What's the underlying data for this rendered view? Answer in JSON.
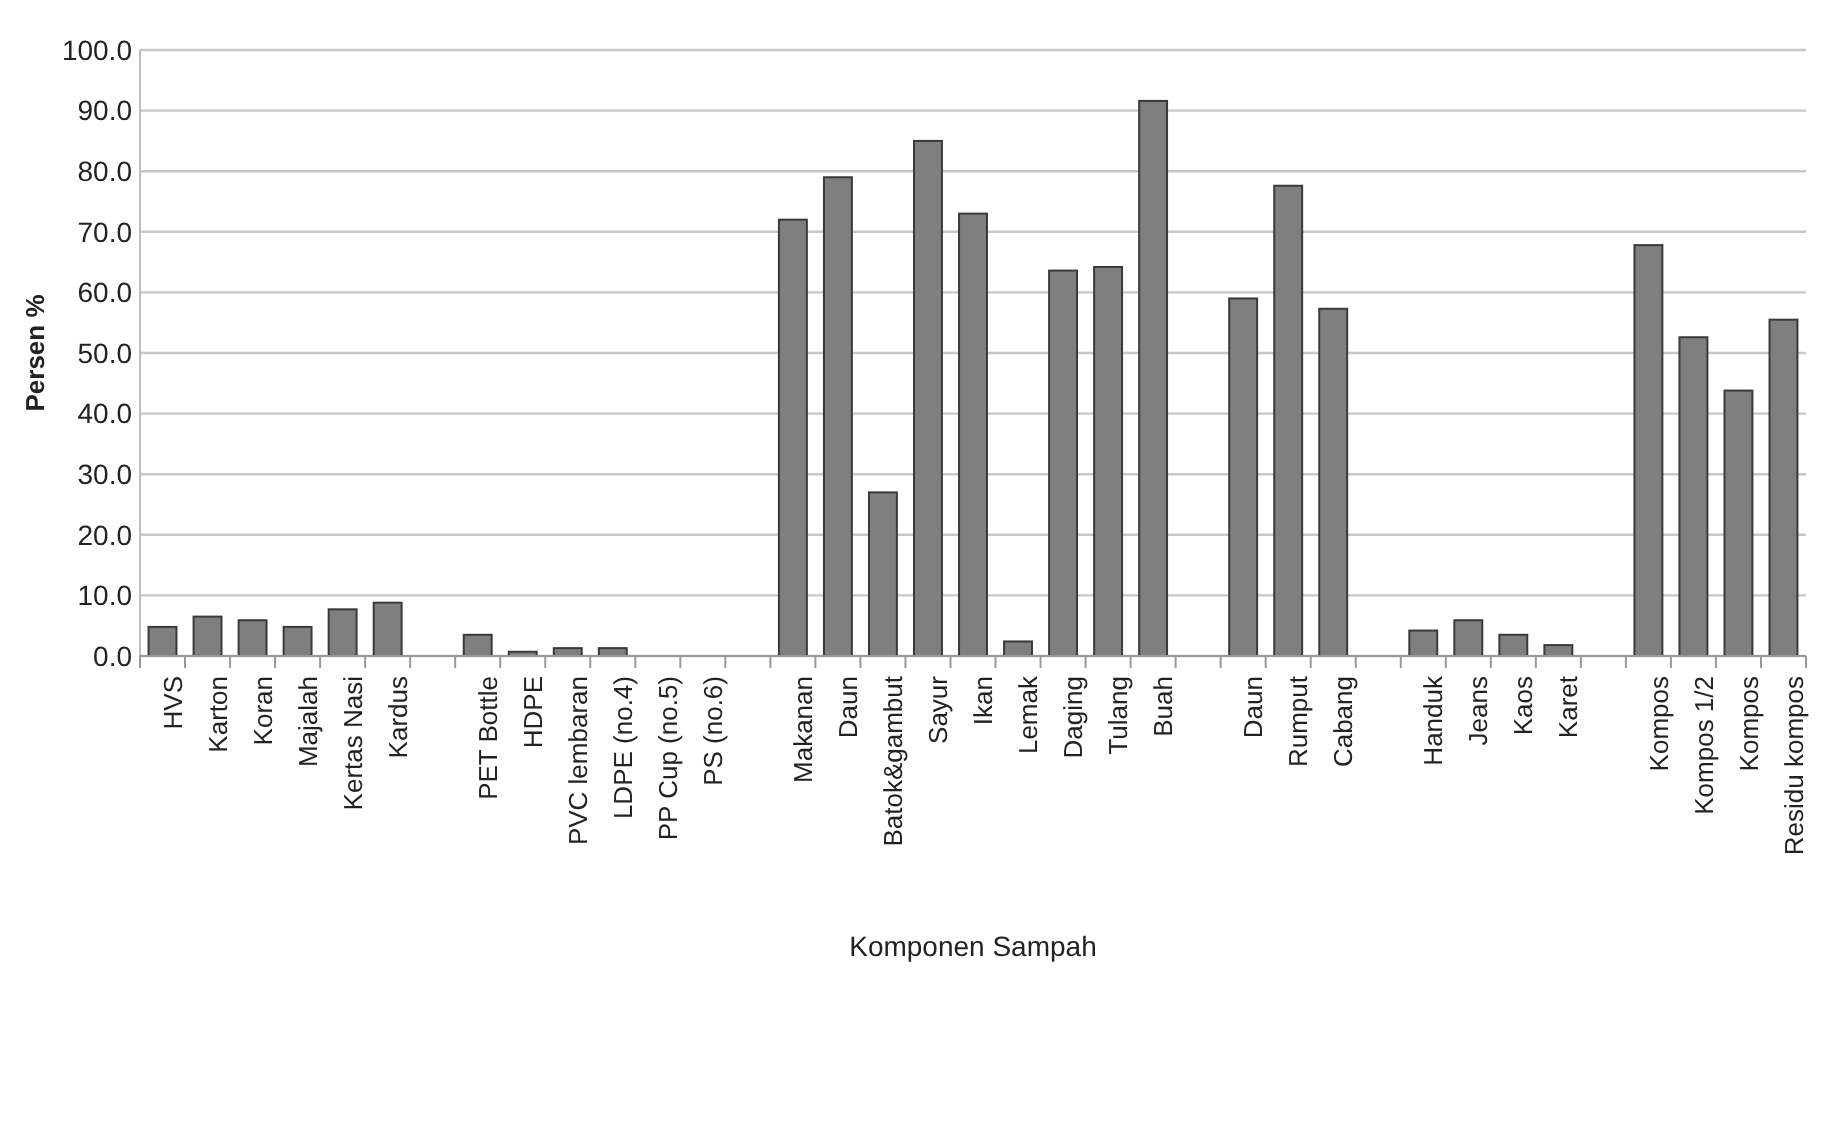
{
  "chart_data": {
    "type": "bar",
    "xlabel": "Komponen Sampah",
    "ylabel": "Persen %",
    "categories": [
      "HVS",
      "Karton",
      "Koran",
      "Majalah",
      "Kertas Nasi",
      "Kardus",
      null,
      "PET Bottle",
      "HDPE",
      "PVC lembaran",
      "LDPE (no.4)",
      "PP Cup (no.5)",
      "PS (no.6)",
      null,
      "Makanan",
      "Daun",
      "Batok&gambut",
      "Sayur",
      "Ikan",
      "Lemak",
      "Daging",
      "Tulang",
      "Buah",
      null,
      "Daun",
      "Rumput",
      "Cabang",
      null,
      "Handuk",
      "Jeans",
      "Kaos",
      "Karet",
      null,
      "Kompos",
      "Kompos 1/2",
      "Kompos",
      "Residu kompos"
    ],
    "values": [
      4.8,
      6.5,
      5.9,
      4.8,
      7.7,
      8.8,
      null,
      3.5,
      0.7,
      1.3,
      1.3,
      0,
      0,
      null,
      72,
      79,
      27,
      85,
      73,
      2.4,
      63.6,
      64.2,
      91.6,
      null,
      59,
      77.6,
      57.3,
      null,
      4.2,
      5.9,
      3.5,
      1.8,
      null,
      67.8,
      52.6,
      43.8,
      55.5
    ],
    "color": "#7f7f7f",
    "ylim": [
      0,
      100
    ],
    "yticks": [
      {
        "value": 0,
        "label": "0.0"
      },
      {
        "value": 10,
        "label": "10.0"
      },
      {
        "value": 20,
        "label": "20.0"
      },
      {
        "value": 30,
        "label": "30.0"
      },
      {
        "value": 40,
        "label": "40.0"
      },
      {
        "value": 50,
        "label": "50.0"
      },
      {
        "value": 60,
        "label": "60.0"
      },
      {
        "value": 70,
        "label": "70.0"
      },
      {
        "value": 80,
        "label": "80.0"
      },
      {
        "value": 90,
        "label": "90.0"
      },
      {
        "value": 100,
        "label": "100.0"
      }
    ],
    "grid": "y"
  }
}
